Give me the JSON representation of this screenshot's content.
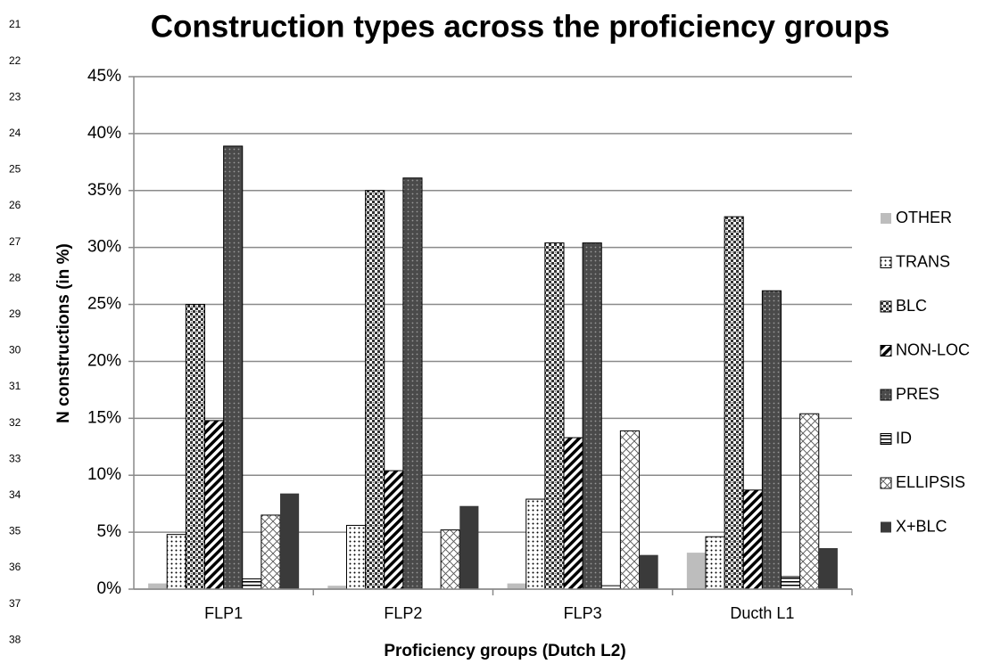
{
  "margin_numbers": [
    "21",
    "22",
    "23",
    "24",
    "25",
    "26",
    "27",
    "28",
    "29",
    "30",
    "31",
    "32",
    "33",
    "34",
    "35",
    "36",
    "37",
    "38"
  ],
  "chart_data": {
    "type": "bar",
    "title": "Construction types across the proficiency groups",
    "x_label": "Proficiency groups (Dutch L2)",
    "y_label": "N constructions (in %)",
    "categories": [
      "FLP1",
      "FLP2",
      "FLP3",
      "Ducth L1"
    ],
    "series": [
      {
        "name": "OTHER",
        "color": "#bdbdbd",
        "pattern": "solid",
        "values": [
          0.5,
          0.3,
          0.5,
          3.2
        ]
      },
      {
        "name": "TRANS",
        "color": "#ffffff",
        "pattern": "dots",
        "values": [
          4.8,
          5.6,
          7.9,
          4.6
        ]
      },
      {
        "name": "BLC",
        "color": "#ffffff",
        "pattern": "checker",
        "values": [
          25,
          35,
          30.4,
          32.7
        ]
      },
      {
        "name": "NON-LOC",
        "color": "#ffffff",
        "pattern": "stripes",
        "values": [
          14.8,
          10.4,
          13.3,
          8.7
        ]
      },
      {
        "name": "PRES",
        "color": "#555555",
        "pattern": "darkdots",
        "values": [
          38.9,
          36.1,
          30.4,
          26.2
        ]
      },
      {
        "name": "ID",
        "color": "#ffffff",
        "pattern": "hlines",
        "values": [
          0.9,
          0,
          0.3,
          1.1
        ]
      },
      {
        "name": "ELLIPSIS",
        "color": "#ffffff",
        "pattern": "crosshatch",
        "values": [
          6.5,
          5.2,
          13.9,
          15.4
        ]
      },
      {
        "name": "X+BLC",
        "color": "#3a3a3a",
        "pattern": "solid",
        "values": [
          8.4,
          7.3,
          3.0,
          3.6
        ]
      }
    ],
    "ylim": [
      0,
      45
    ],
    "yticks": [
      {
        "value": 0,
        "label": "0%"
      },
      {
        "value": 5,
        "label": "5%"
      },
      {
        "value": 10,
        "label": "10%"
      },
      {
        "value": 15,
        "label": "15%"
      },
      {
        "value": 20,
        "label": "20%"
      },
      {
        "value": 25,
        "label": "25%"
      },
      {
        "value": 30,
        "label": "30%"
      },
      {
        "value": 35,
        "label": "35%"
      },
      {
        "value": 40,
        "label": "40%"
      },
      {
        "value": 45,
        "label": "45%"
      }
    ],
    "grid": true,
    "legend": "right"
  }
}
